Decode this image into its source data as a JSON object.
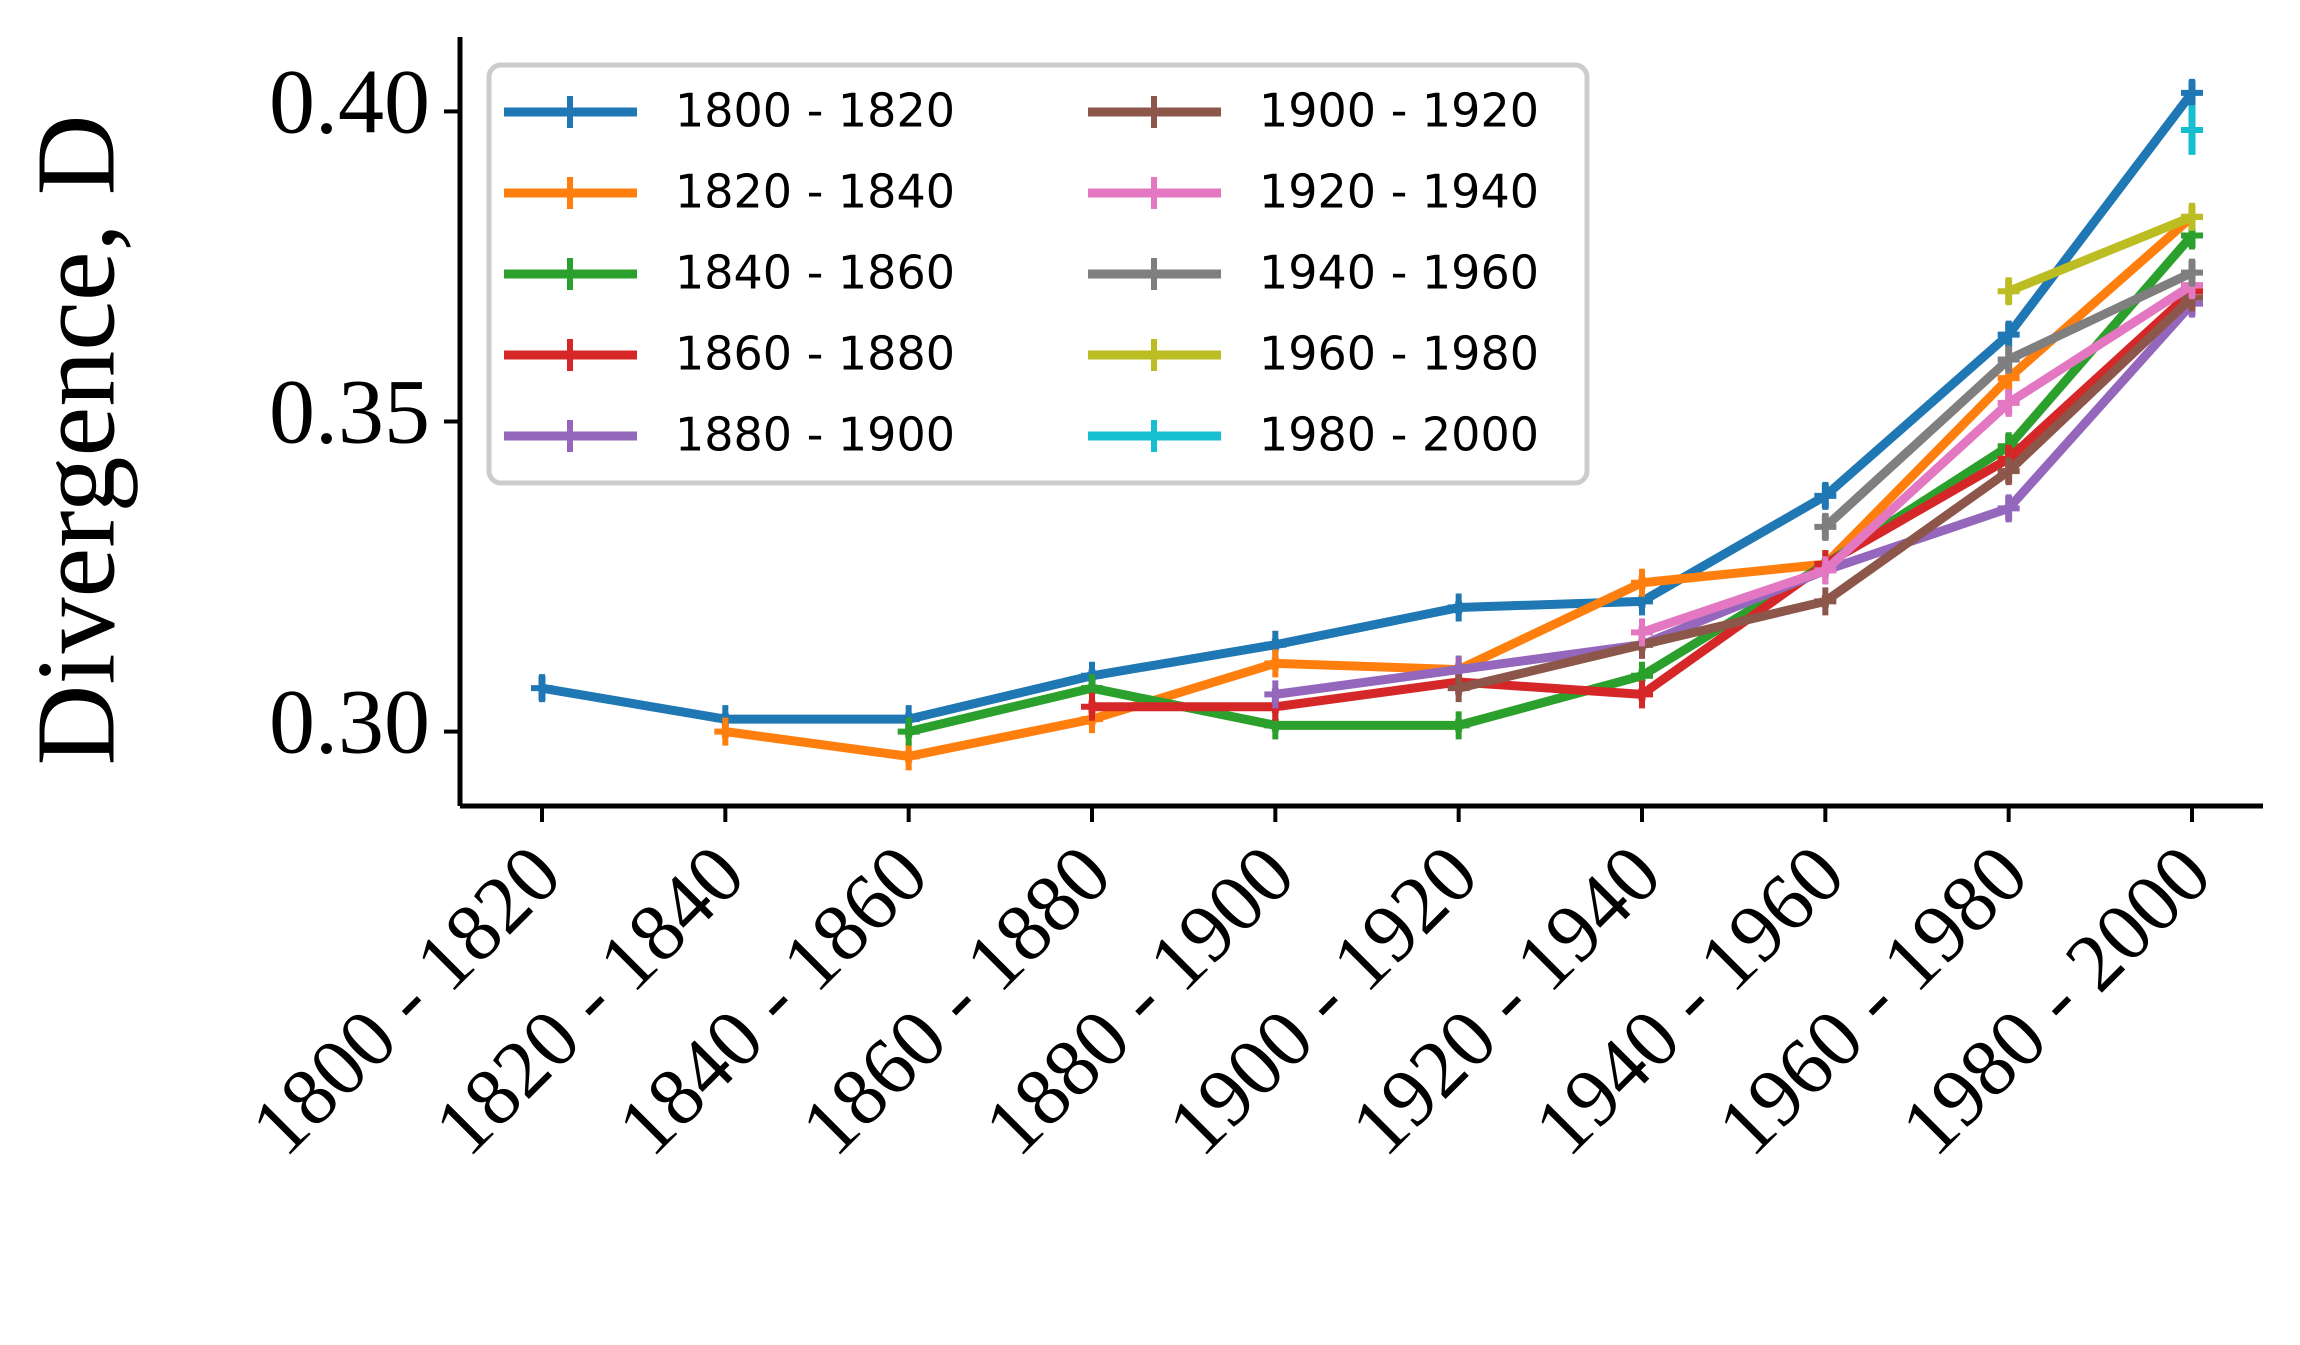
{
  "chart_data": {
    "type": "line",
    "ylabel": "Divergence, D",
    "categories": [
      "1800 - 1820",
      "1820 - 1840",
      "1840 - 1860",
      "1860 - 1880",
      "1880 - 1900",
      "1900 - 1920",
      "1920 - 1940",
      "1940 - 1960",
      "1960 - 1980",
      "1980 - 2000"
    ],
    "series": [
      {
        "name": "1800 - 1820",
        "color": "#1f77b4",
        "values": [
          0.307,
          0.302,
          0.302,
          0.309,
          0.314,
          0.32,
          0.321,
          0.338,
          0.364,
          0.403
        ],
        "errors": [
          0.002,
          0.001,
          0.001,
          0.001,
          0.001,
          0.001,
          0.001,
          0.002,
          0.002,
          0.002
        ]
      },
      {
        "name": "1820 - 1840",
        "color": "#ff7f0e",
        "values": [
          null,
          0.3,
          0.296,
          0.302,
          0.311,
          0.31,
          0.324,
          0.327,
          0.357,
          0.383
        ],
        "errors": [
          null,
          0.001,
          0.001,
          0.001,
          0.001,
          0.001,
          0.001,
          0.001,
          0.002,
          0.002
        ]
      },
      {
        "name": "1840 - 1860",
        "color": "#2ca02c",
        "values": [
          null,
          null,
          0.3,
          0.307,
          0.301,
          0.301,
          0.309,
          0.327,
          0.346,
          0.38
        ],
        "errors": [
          null,
          null,
          0.001,
          0.001,
          0.001,
          0.001,
          0.001,
          0.001,
          0.002,
          0.002
        ]
      },
      {
        "name": "1860 - 1880",
        "color": "#d62728",
        "values": [
          null,
          null,
          null,
          0.304,
          0.304,
          0.308,
          0.306,
          0.327,
          0.344,
          0.371
        ],
        "errors": [
          null,
          null,
          null,
          0.001,
          0.001,
          0.001,
          0.001,
          0.001,
          0.002,
          0.002
        ]
      },
      {
        "name": "1880 - 1900",
        "color": "#9467bd",
        "values": [
          null,
          null,
          null,
          null,
          0.306,
          0.31,
          0.314,
          0.326,
          0.336,
          0.369
        ],
        "errors": [
          null,
          null,
          null,
          null,
          0.001,
          0.001,
          0.001,
          0.001,
          0.002,
          0.002
        ]
      },
      {
        "name": "1900 - 1920",
        "color": "#8c564b",
        "values": [
          null,
          null,
          null,
          null,
          null,
          0.307,
          0.314,
          0.321,
          0.342,
          0.37
        ],
        "errors": [
          null,
          null,
          null,
          null,
          null,
          0.001,
          0.001,
          0.001,
          0.002,
          0.002
        ]
      },
      {
        "name": "1920 - 1940",
        "color": "#e377c2",
        "values": [
          null,
          null,
          null,
          null,
          null,
          null,
          0.316,
          0.326,
          0.353,
          0.372
        ],
        "errors": [
          null,
          null,
          null,
          null,
          null,
          null,
          0.001,
          0.001,
          0.002,
          0.002
        ]
      },
      {
        "name": "1940 - 1960",
        "color": "#7f7f7f",
        "values": [
          null,
          null,
          null,
          null,
          null,
          null,
          null,
          0.333,
          0.36,
          0.374
        ],
        "errors": [
          null,
          null,
          null,
          null,
          null,
          null,
          null,
          0.002,
          0.002,
          0.002
        ]
      },
      {
        "name": "1960 - 1980",
        "color": "#bcbd22",
        "values": [
          null,
          null,
          null,
          null,
          null,
          null,
          null,
          null,
          0.371,
          0.383
        ],
        "errors": [
          null,
          null,
          null,
          null,
          null,
          null,
          null,
          null,
          0.002,
          0.002
        ]
      },
      {
        "name": "1980 - 2000",
        "color": "#17becf",
        "values": [
          null,
          null,
          null,
          null,
          null,
          null,
          null,
          null,
          null,
          0.397
        ],
        "errors": [
          null,
          null,
          null,
          null,
          null,
          null,
          null,
          null,
          null,
          0.004
        ]
      }
    ],
    "ylim": [
      0.288,
      0.412
    ],
    "yticks": [
      {
        "value": 0.3,
        "label": "0.30"
      },
      {
        "value": 0.35,
        "label": "0.35"
      },
      {
        "value": 0.4,
        "label": "0.40"
      }
    ],
    "grid": false,
    "legend": "upper left",
    "legend_columns": 2
  }
}
